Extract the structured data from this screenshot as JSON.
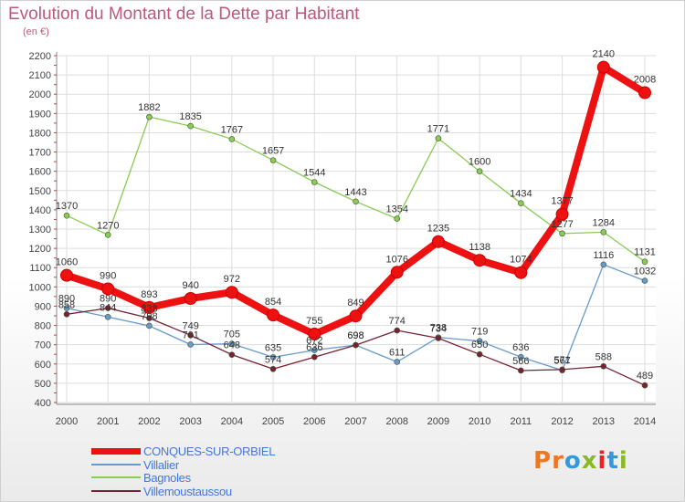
{
  "chart_data": {
    "type": "line",
    "title": "Evolution du Montant de la Dette par Habitant",
    "subtitle": "(en €)",
    "xlabel": "",
    "ylabel": "",
    "x": [
      "2000",
      "2001",
      "2002",
      "2003",
      "2004",
      "2005",
      "2006",
      "2007",
      "2008",
      "2009",
      "2010",
      "2011",
      "2012",
      "2013",
      "2014"
    ],
    "ylim": [
      400,
      2200
    ],
    "yticks": [
      400,
      500,
      600,
      700,
      800,
      900,
      1000,
      1100,
      1200,
      1300,
      1400,
      1500,
      1600,
      1700,
      1800,
      1900,
      2000,
      2100,
      2200
    ],
    "grid": true,
    "legend_position": "bottom-left",
    "series": [
      {
        "name": "Bagnoles",
        "color": "#88cc55",
        "width": 1.3,
        "values": [
          1370,
          1270,
          1882,
          1835,
          1767,
          1657,
          1544,
          1443,
          1354,
          1771,
          1600,
          1434,
          1277,
          1284,
          1131
        ],
        "labels": [
          "1370",
          "1270",
          "1882",
          "1835",
          "1767",
          "1657",
          "1544",
          "1443",
          "1354",
          "1771",
          "1600",
          "1434",
          "1277",
          "1284",
          "1131"
        ]
      },
      {
        "name": "Villalier",
        "color": "#6699cc",
        "width": 1.3,
        "values": [
          890,
          844,
          798,
          701,
          705,
          635,
          672,
          698,
          611,
          738,
          719,
          636,
          567,
          1116,
          1032
        ],
        "labels": [
          "890",
          "844",
          "798",
          "701",
          "705",
          "635",
          "672",
          "698",
          "611",
          "738",
          "719",
          "636",
          "567",
          "1116",
          "1032"
        ]
      },
      {
        "name": "Villemoustaussou",
        "color": "#772233",
        "width": 1.3,
        "values": [
          858,
          890,
          838,
          749,
          648,
          574,
          636,
          698,
          774,
          734,
          650,
          566,
          571,
          588,
          489
        ],
        "labels": [
          "858",
          "890",
          "838",
          "749",
          "648",
          "574",
          "636",
          "698",
          "774",
          "734",
          "650",
          "566",
          "571",
          "588",
          "489"
        ]
      },
      {
        "name": "CONQUES-SUR-ORBIEL",
        "color": "#ee1111",
        "width": 8,
        "values": [
          1060,
          990,
          893,
          940,
          972,
          854,
          755,
          849,
          1076,
          1235,
          1138,
          1074,
          1377,
          2140,
          2008
        ],
        "labels": [
          "1060",
          "990",
          "893",
          "940",
          "972",
          "854",
          "755",
          "849",
          "1076",
          "1235",
          "1138",
          "1074",
          "1377",
          "2140",
          "2008"
        ]
      }
    ]
  },
  "legend": [
    {
      "name": "CONQUES-SUR-ORBIEL",
      "color": "#ee1111"
    },
    {
      "name": "Villalier",
      "color": "#6699cc"
    },
    {
      "name": "Bagnoles",
      "color": "#88cc55"
    },
    {
      "name": "Villemoustaussou",
      "color": "#772233"
    }
  ],
  "logo": {
    "text": "Proxiti"
  }
}
